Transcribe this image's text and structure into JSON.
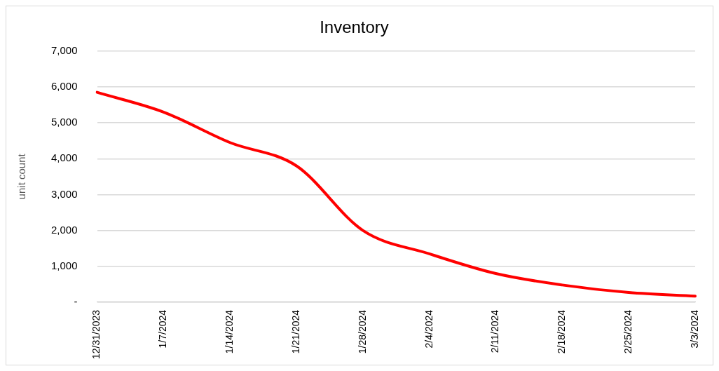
{
  "chart_data": {
    "type": "line",
    "title": "Inventory",
    "ylabel": "unit count",
    "categories": [
      "12/31/2023",
      "1/7/2024",
      "1/14/2024",
      "1/21/2024",
      "1/28/2024",
      "2/4/2024",
      "2/11/2024",
      "2/18/2024",
      "2/25/2024",
      "3/3/2024"
    ],
    "series": [
      {
        "color": "#ff0000",
        "values": [
          5850,
          5300,
          4450,
          3800,
          2000,
          1350,
          800,
          480,
          270,
          170
        ]
      }
    ],
    "ylim": [
      0,
      7000
    ],
    "yticks": [
      {
        "value": 0,
        "label": "-"
      },
      {
        "value": 1000,
        "label": "1,000"
      },
      {
        "value": 2000,
        "label": "2,000"
      },
      {
        "value": 3000,
        "label": "3,000"
      },
      {
        "value": 4000,
        "label": "4,000"
      },
      {
        "value": 5000,
        "label": "5,000"
      },
      {
        "value": 6000,
        "label": "6,000"
      },
      {
        "value": 7000,
        "label": "7,000"
      }
    ],
    "grid": "y",
    "legend": false,
    "marker": "none",
    "line_style": "solid"
  }
}
